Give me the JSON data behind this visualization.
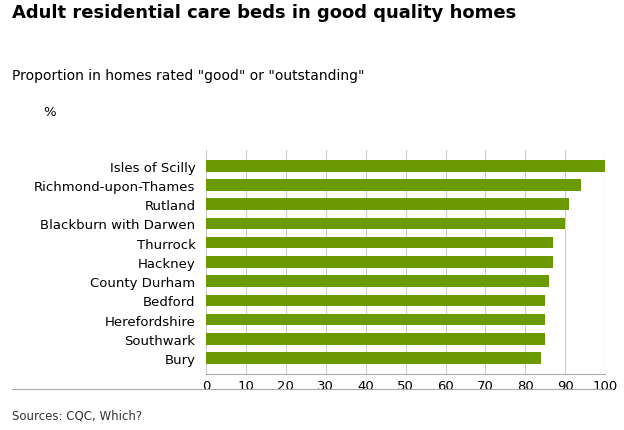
{
  "title": "Adult residential care beds in good quality homes",
  "subtitle": "Proportion in homes rated \"good\" or \"outstanding\"",
  "legend_label": "%",
  "bar_color": "#6a9a00",
  "categories": [
    "Isles of Scilly",
    "Richmond-upon-Thames",
    "Rutland",
    "Blackburn with Darwen",
    "Thurrock",
    "Hackney",
    "County Durham",
    "Bedford",
    "Herefordshire",
    "Southwark",
    "Bury"
  ],
  "values": [
    100,
    94,
    91,
    90,
    87,
    87,
    86,
    85,
    85,
    85,
    84
  ],
  "xlim": [
    0,
    100
  ],
  "xticks": [
    0,
    10,
    20,
    30,
    40,
    50,
    60,
    70,
    80,
    90,
    100
  ],
  "source_text": "Sources: CQC, Which?",
  "background_color": "#ffffff",
  "grid_color": "#cccccc",
  "title_fontsize": 13,
  "subtitle_fontsize": 10,
  "label_fontsize": 9.5,
  "tick_fontsize": 9.5,
  "source_fontsize": 8.5
}
